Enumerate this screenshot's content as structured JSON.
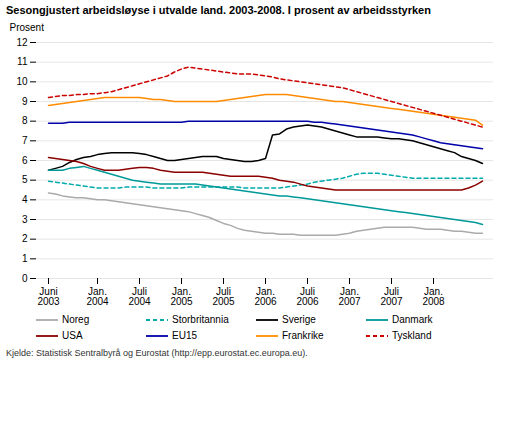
{
  "chart_data": {
    "type": "line",
    "title": "Sesongjustert arbeidsløyse i utvalde land. 2003-2008. I prosent av arbeidsstyrken",
    "y_label": "Prosent",
    "source": "Kjelde: Statistisk Sentralbyrå og Eurostat (http://epp.eurostat.ec.europa.eu).",
    "categories": [
      "Juni\n2003",
      null,
      null,
      null,
      null,
      null,
      null,
      "Jan.\n2004",
      null,
      null,
      null,
      null,
      null,
      "Juli\n2004",
      null,
      null,
      null,
      null,
      null,
      "Jan.\n2005",
      null,
      null,
      null,
      null,
      null,
      "Juli\n2005",
      null,
      null,
      null,
      null,
      null,
      "Jan.\n2006",
      null,
      null,
      null,
      null,
      null,
      "Juli\n2006",
      null,
      null,
      null,
      null,
      null,
      "Jan.\n2007",
      null,
      null,
      null,
      null,
      null,
      "Juli\n2007",
      null,
      null,
      null,
      null,
      null,
      "Jan.\n2008",
      null,
      null,
      null,
      null,
      null,
      null,
      null
    ],
    "ylim": [
      0,
      12
    ],
    "yticks": [
      0,
      1,
      2,
      3,
      4,
      5,
      6,
      7,
      8,
      9,
      10,
      11,
      12
    ],
    "grid": true,
    "series": [
      {
        "name": "Noreg",
        "color": "#aaaaaa",
        "line_style": "solid",
        "values": [
          4.35,
          4.3,
          4.2,
          4.15,
          4.1,
          4.1,
          4.05,
          4.0,
          4.0,
          3.95,
          3.9,
          3.85,
          3.8,
          3.75,
          3.7,
          3.65,
          3.6,
          3.55,
          3.5,
          3.45,
          3.4,
          3.3,
          3.2,
          3.1,
          2.95,
          2.8,
          2.7,
          2.55,
          2.45,
          2.4,
          2.35,
          2.3,
          2.3,
          2.25,
          2.25,
          2.25,
          2.2,
          2.2,
          2.2,
          2.2,
          2.2,
          2.2,
          2.25,
          2.3,
          2.4,
          2.45,
          2.5,
          2.55,
          2.6,
          2.6,
          2.6,
          2.6,
          2.6,
          2.55,
          2.5,
          2.5,
          2.5,
          2.45,
          2.4,
          2.4,
          2.35,
          2.3,
          2.3
        ]
      },
      {
        "name": "Storbritannia",
        "color": "#00aaaa",
        "line_style": "dashed",
        "values": [
          4.95,
          4.9,
          4.85,
          4.8,
          4.75,
          4.7,
          4.65,
          4.6,
          4.6,
          4.6,
          4.6,
          4.65,
          4.65,
          4.65,
          4.65,
          4.6,
          4.6,
          4.6,
          4.6,
          4.6,
          4.65,
          4.65,
          4.65,
          4.65,
          4.65,
          4.65,
          4.65,
          4.65,
          4.6,
          4.6,
          4.6,
          4.6,
          4.6,
          4.6,
          4.65,
          4.7,
          4.75,
          4.8,
          4.9,
          4.95,
          5.0,
          5.05,
          5.1,
          5.2,
          5.3,
          5.35,
          5.35,
          5.35,
          5.3,
          5.25,
          5.2,
          5.15,
          5.1,
          5.1,
          5.1,
          5.1,
          5.1,
          5.1,
          5.1,
          5.1,
          5.1,
          5.1,
          5.1
        ]
      },
      {
        "name": "Sverige",
        "color": "#000000",
        "line_style": "solid",
        "values": [
          5.5,
          5.6,
          5.7,
          5.9,
          6.05,
          6.15,
          6.2,
          6.3,
          6.35,
          6.4,
          6.4,
          6.4,
          6.4,
          6.35,
          6.3,
          6.2,
          6.1,
          6.0,
          6.0,
          6.05,
          6.1,
          6.15,
          6.2,
          6.2,
          6.2,
          6.1,
          6.05,
          6.0,
          5.95,
          5.95,
          6.0,
          6.1,
          7.3,
          7.35,
          7.6,
          7.7,
          7.75,
          7.8,
          7.75,
          7.7,
          7.6,
          7.5,
          7.4,
          7.3,
          7.2,
          7.2,
          7.2,
          7.2,
          7.15,
          7.1,
          7.1,
          7.05,
          7.0,
          6.9,
          6.8,
          6.7,
          6.6,
          6.5,
          6.4,
          6.2,
          6.1,
          6.0,
          5.85
        ]
      },
      {
        "name": "Danmark",
        "color": "#009999",
        "line_style": "solid",
        "values": [
          5.5,
          5.5,
          5.5,
          5.6,
          5.65,
          5.7,
          5.6,
          5.5,
          5.4,
          5.3,
          5.2,
          5.1,
          5.0,
          4.95,
          4.9,
          4.85,
          4.8,
          4.8,
          4.8,
          4.8,
          4.8,
          4.8,
          4.75,
          4.7,
          4.65,
          4.6,
          4.55,
          4.5,
          4.45,
          4.4,
          4.35,
          4.3,
          4.25,
          4.2,
          4.2,
          4.15,
          4.1,
          4.05,
          4.0,
          3.95,
          3.9,
          3.85,
          3.8,
          3.75,
          3.7,
          3.65,
          3.6,
          3.55,
          3.5,
          3.45,
          3.4,
          3.35,
          3.3,
          3.25,
          3.2,
          3.15,
          3.1,
          3.05,
          3.0,
          2.95,
          2.9,
          2.85,
          2.75
        ]
      },
      {
        "name": "USA",
        "color": "#8b0000",
        "line_style": "solid",
        "values": [
          6.15,
          6.1,
          6.05,
          6.0,
          5.95,
          5.85,
          5.7,
          5.6,
          5.5,
          5.5,
          5.5,
          5.55,
          5.6,
          5.65,
          5.65,
          5.6,
          5.5,
          5.45,
          5.4,
          5.4,
          5.4,
          5.4,
          5.4,
          5.35,
          5.3,
          5.25,
          5.2,
          5.2,
          5.2,
          5.2,
          5.2,
          5.15,
          5.1,
          5.0,
          4.95,
          4.9,
          4.8,
          4.7,
          4.65,
          4.6,
          4.55,
          4.5,
          4.5,
          4.5,
          4.5,
          4.5,
          4.5,
          4.5,
          4.5,
          4.5,
          4.5,
          4.5,
          4.5,
          4.5,
          4.5,
          4.5,
          4.5,
          4.5,
          4.5,
          4.5,
          4.6,
          4.75,
          4.95
        ]
      },
      {
        "name": "EU15",
        "color": "#0000aa",
        "line_style": "solid",
        "values": [
          7.9,
          7.9,
          7.9,
          7.95,
          7.95,
          7.95,
          7.95,
          7.95,
          7.95,
          7.95,
          7.95,
          7.95,
          7.95,
          7.95,
          7.95,
          7.95,
          7.95,
          7.95,
          7.95,
          7.95,
          8.0,
          8.0,
          8.0,
          8.0,
          8.0,
          8.0,
          8.0,
          8.0,
          8.0,
          8.0,
          8.0,
          8.0,
          8.0,
          8.0,
          8.0,
          8.0,
          8.0,
          8.0,
          7.95,
          7.95,
          7.9,
          7.85,
          7.8,
          7.75,
          7.7,
          7.65,
          7.6,
          7.55,
          7.5,
          7.45,
          7.4,
          7.35,
          7.3,
          7.2,
          7.1,
          7.0,
          6.9,
          6.85,
          6.8,
          6.75,
          6.7,
          6.65,
          6.6
        ]
      },
      {
        "name": "Frankrike",
        "color": "#ff8c00",
        "line_style": "solid",
        "values": [
          8.8,
          8.85,
          8.9,
          8.95,
          9.0,
          9.05,
          9.1,
          9.15,
          9.2,
          9.2,
          9.2,
          9.2,
          9.2,
          9.2,
          9.15,
          9.1,
          9.1,
          9.05,
          9.0,
          9.0,
          9.0,
          9.0,
          9.0,
          9.0,
          9.0,
          9.05,
          9.1,
          9.15,
          9.2,
          9.25,
          9.3,
          9.35,
          9.35,
          9.35,
          9.35,
          9.3,
          9.25,
          9.2,
          9.15,
          9.1,
          9.05,
          9.0,
          9.0,
          8.95,
          8.9,
          8.85,
          8.8,
          8.75,
          8.7,
          8.65,
          8.6,
          8.55,
          8.5,
          8.45,
          8.4,
          8.35,
          8.3,
          8.25,
          8.2,
          8.15,
          8.1,
          8.05,
          7.8
        ]
      },
      {
        "name": "Tyskland",
        "color": "#cc0000",
        "line_style": "dashed",
        "values": [
          9.2,
          9.25,
          9.3,
          9.3,
          9.35,
          9.35,
          9.4,
          9.4,
          9.45,
          9.5,
          9.6,
          9.7,
          9.8,
          9.9,
          10.0,
          10.1,
          10.2,
          10.3,
          10.5,
          10.65,
          10.75,
          10.7,
          10.65,
          10.6,
          10.55,
          10.5,
          10.45,
          10.4,
          10.4,
          10.4,
          10.35,
          10.3,
          10.25,
          10.15,
          10.1,
          10.05,
          10.0,
          9.95,
          9.9,
          9.85,
          9.8,
          9.75,
          9.7,
          9.6,
          9.5,
          9.4,
          9.3,
          9.2,
          9.1,
          9.0,
          8.9,
          8.8,
          8.7,
          8.6,
          8.5,
          8.4,
          8.3,
          8.2,
          8.1,
          8.0,
          7.9,
          7.8,
          7.7
        ]
      }
    ]
  }
}
